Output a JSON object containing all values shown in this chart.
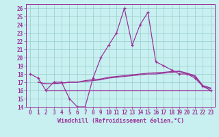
{
  "xlabel": "Windchill (Refroidissement éolien,°C)",
  "bg_color": "#c8f0f0",
  "grid_color": "#99cccc",
  "line_color": "#993399",
  "line_color2": "#aa44aa",
  "xlim": [
    -0.5,
    23.5
  ],
  "ylim": [
    14,
    26.5
  ],
  "xticks": [
    0,
    1,
    2,
    3,
    4,
    5,
    6,
    7,
    8,
    9,
    10,
    11,
    12,
    13,
    14,
    15,
    16,
    17,
    18,
    19,
    20,
    21,
    22,
    23
  ],
  "yticks": [
    14,
    15,
    16,
    17,
    18,
    19,
    20,
    21,
    22,
    23,
    24,
    25,
    26
  ],
  "main_x": [
    0,
    1,
    2,
    3,
    4,
    5,
    6,
    7,
    8,
    9,
    10,
    11,
    12,
    13,
    14,
    15,
    16,
    17,
    18,
    19,
    20,
    21,
    22,
    23
  ],
  "main_y": [
    18.0,
    17.5,
    16.0,
    17.0,
    17.0,
    15.0,
    14.0,
    14.0,
    17.5,
    20.0,
    21.5,
    23.0,
    26.0,
    21.5,
    24.0,
    25.5,
    19.5,
    19.0,
    18.5,
    18.0,
    18.0,
    17.5,
    16.5,
    16.0
  ],
  "flat_line_y": 16.0,
  "flat_line_x": [
    2,
    23
  ],
  "line2_x": [
    1,
    2,
    3,
    4,
    5,
    6,
    7,
    8,
    9,
    10,
    11,
    12,
    13,
    14,
    15,
    16,
    17,
    18,
    19,
    20,
    21,
    22,
    23
  ],
  "line2_y": [
    17.0,
    16.8,
    16.8,
    16.9,
    17.0,
    17.0,
    17.1,
    17.2,
    17.3,
    17.5,
    17.6,
    17.7,
    17.8,
    17.9,
    18.0,
    18.0,
    18.1,
    18.2,
    18.3,
    18.0,
    17.7,
    16.5,
    16.2
  ],
  "line3_x": [
    1,
    2,
    3,
    4,
    5,
    6,
    7,
    8,
    9,
    10,
    11,
    12,
    13,
    14,
    15,
    16,
    17,
    18,
    19,
    20,
    21,
    22,
    23
  ],
  "line3_y": [
    17.0,
    16.8,
    16.8,
    16.9,
    17.0,
    17.0,
    17.2,
    17.3,
    17.4,
    17.6,
    17.7,
    17.8,
    17.9,
    18.0,
    18.1,
    18.15,
    18.2,
    18.3,
    18.35,
    18.1,
    17.8,
    16.6,
    16.3
  ]
}
